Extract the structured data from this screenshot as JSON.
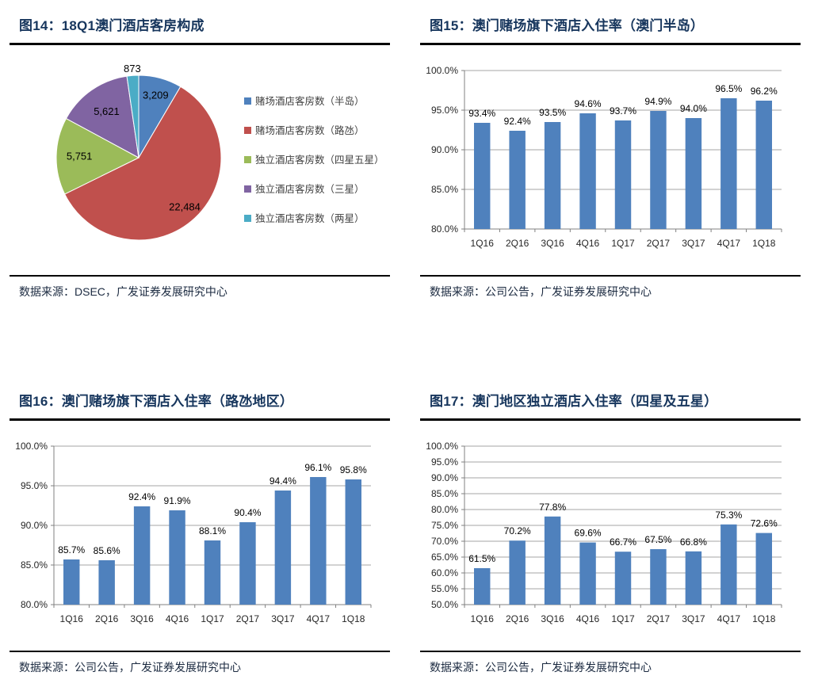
{
  "colors": {
    "title_text": "#17365D",
    "divider": "#000000",
    "gridline": "#A6A6A6",
    "axis_line": "#808080",
    "axis_label": "#262626",
    "data_label": "#000000",
    "legend_text": "#404040",
    "bar_blue": "#4F81BD"
  },
  "panels": [
    {
      "title": "图14：18Q1澳门酒店客房构成",
      "source": "数据来源：DSEC，广发证券发展研究中心",
      "chart_index": 0
    },
    {
      "title": "图15：澳门赌场旗下酒店入住率（澳门半岛）",
      "source": "数据来源：公司公告，广发证券发展研究中心",
      "chart_index": 1
    },
    {
      "title": "图16：澳门赌场旗下酒店入住率（路氹地区）",
      "source": "数据来源：公司公告，广发证券发展研究中心",
      "chart_index": 2
    },
    {
      "title": "图17：澳门地区独立酒店入住率（四星及五星）",
      "source": "数据来源：公司公告，广发证券发展研究中心",
      "chart_index": 3
    }
  ],
  "chart_data": [
    {
      "type": "pie",
      "title": "18Q1澳门酒店客房构成",
      "labels": [
        "赌场酒店客房数（半岛）",
        "赌场酒店客房数（路氹）",
        "独立酒店客房数（四星五星）",
        "独立酒店客房数（三星）",
        "独立酒店客房数（两星）"
      ],
      "values": [
        3209,
        22484,
        5751,
        5621,
        873
      ],
      "value_labels": [
        "3,209",
        "22,484",
        "5,751",
        "5,621",
        "873"
      ],
      "colors": [
        "#4F81BD",
        "#C0504D",
        "#9BBB59",
        "#8064A2",
        "#4BACC6"
      ],
      "start_angle": "12-oclock-clockwise",
      "legend_position": "right",
      "label_r_frac": [
        0.78,
        0.82,
        0.72,
        0.68,
        1.08
      ],
      "label_placement": [
        "inside",
        "inside",
        "inside",
        "inside",
        "outside"
      ]
    },
    {
      "type": "bar",
      "title": "澳门赌场旗下酒店入住率（澳门半岛）",
      "categories": [
        "1Q16",
        "2Q16",
        "3Q16",
        "4Q16",
        "1Q17",
        "2Q17",
        "3Q17",
        "4Q17",
        "1Q18"
      ],
      "values": [
        93.4,
        92.4,
        93.5,
        94.6,
        93.7,
        94.9,
        94.0,
        96.5,
        96.2
      ],
      "value_labels": [
        "93.4%",
        "92.4%",
        "93.5%",
        "94.6%",
        "93.7%",
        "94.9%",
        "94.0%",
        "96.5%",
        "96.2%"
      ],
      "xlabel": "",
      "ylabel": "",
      "ylim": [
        80,
        100
      ],
      "ytick_step": 5,
      "ytick_labels": [
        "80.0%",
        "85.0%",
        "90.0%",
        "95.0%",
        "100.0%"
      ],
      "grid": true,
      "legend": false,
      "bar_color": "#4F81BD"
    },
    {
      "type": "bar",
      "title": "澳门赌场旗下酒店入住率（路氹地区）",
      "categories": [
        "1Q16",
        "2Q16",
        "3Q16",
        "4Q16",
        "1Q17",
        "2Q17",
        "3Q17",
        "4Q17",
        "1Q18"
      ],
      "values": [
        85.7,
        85.6,
        92.4,
        91.9,
        88.1,
        90.4,
        94.4,
        96.1,
        95.8
      ],
      "value_labels": [
        "85.7%",
        "85.6%",
        "92.4%",
        "91.9%",
        "88.1%",
        "90.4%",
        "94.4%",
        "96.1%",
        "95.8%"
      ],
      "xlabel": "",
      "ylabel": "",
      "ylim": [
        80,
        100
      ],
      "ytick_step": 5,
      "ytick_labels": [
        "80.0%",
        "85.0%",
        "90.0%",
        "95.0%",
        "100.0%"
      ],
      "grid": true,
      "legend": false,
      "bar_color": "#4F81BD"
    },
    {
      "type": "bar",
      "title": "澳门地区独立酒店入住率（四星及五星）",
      "categories": [
        "1Q16",
        "2Q16",
        "3Q16",
        "4Q16",
        "1Q17",
        "2Q17",
        "3Q17",
        "4Q17",
        "1Q18"
      ],
      "values": [
        61.5,
        70.2,
        77.8,
        69.6,
        66.7,
        67.5,
        66.8,
        75.3,
        72.6
      ],
      "value_labels": [
        "61.5%",
        "70.2%",
        "77.8%",
        "69.6%",
        "66.7%",
        "67.5%",
        "66.8%",
        "75.3%",
        "72.6%"
      ],
      "xlabel": "",
      "ylabel": "",
      "ylim": [
        50,
        100
      ],
      "ytick_step": 5,
      "ytick_labels": [
        "50.0%",
        "55.0%",
        "60.0%",
        "65.0%",
        "70.0%",
        "75.0%",
        "80.0%",
        "85.0%",
        "90.0%",
        "95.0%",
        "100.0%"
      ],
      "grid": true,
      "legend": false,
      "bar_color": "#4F81BD"
    }
  ]
}
